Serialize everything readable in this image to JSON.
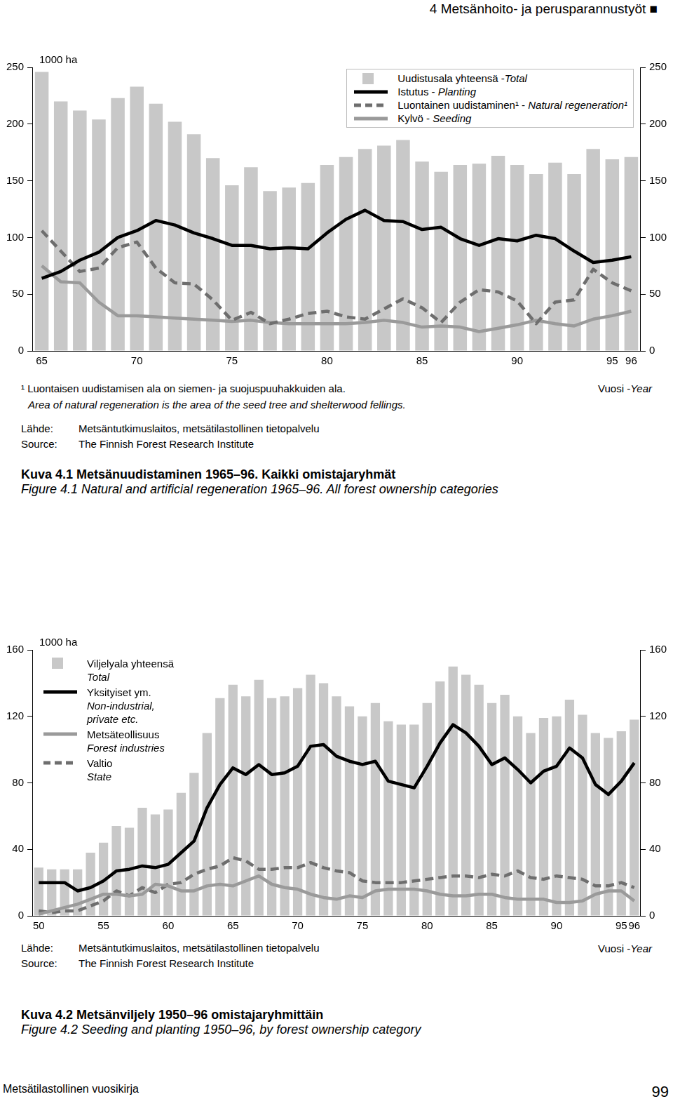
{
  "page": {
    "header": "4 Metsänhoito- ja perusparannustyöt ■",
    "footer": "Metsätilastollinen vuosikirja",
    "page_number": 99
  },
  "chart_data": [
    {
      "type": "bar",
      "title": "Kuva 4.1 Metsänuudistaminen 1965–96. Kaikki omistajaryhmät",
      "subtitle": "Figure 4.1 Natural and artificial regeneration 1965–96. All forest ownership categories",
      "y_label": "1000 ha",
      "x_label": "Vuosi -Year",
      "annotations": [
        "¹ Luontaisen uudistamisen ala on siemen- ja suojuspuuhakkuiden ala.",
        "Area of natural regeneration is the area of the seed tree and shelterwood fellings."
      ],
      "source": [
        {
          "label": "Lähde:",
          "text": "Metsäntutkimuslaitos, metsätilastollinen tietopalvelu"
        },
        {
          "label": "Source:",
          "text": "The Finnish Forest Research Institute"
        }
      ],
      "legend": "upper right",
      "categories": [
        "65",
        null,
        null,
        null,
        null,
        "70",
        null,
        null,
        null,
        null,
        "75",
        null,
        null,
        null,
        null,
        "80",
        null,
        null,
        null,
        null,
        "85",
        null,
        null,
        null,
        null,
        "90",
        null,
        null,
        null,
        null,
        "95",
        "96"
      ],
      "series": [
        {
          "name": "Uudistusala yhteensä -Total",
          "type": "bar",
          "color": "#c8c8c8",
          "values": [
            246,
            220,
            212,
            204,
            223,
            233,
            218,
            202,
            191,
            170,
            146,
            162,
            141,
            144,
            148,
            164,
            171,
            178,
            181,
            186,
            167,
            158,
            164,
            165,
            172,
            164,
            156,
            166,
            156,
            178,
            169,
            171
          ]
        },
        {
          "name": "Istutus - Planting",
          "type": "line",
          "color": "#000000",
          "line_style": "solid",
          "values": [
            64,
            70,
            80,
            87,
            100,
            106,
            115,
            111,
            104,
            99,
            93,
            93,
            90,
            91,
            90,
            104,
            116,
            124,
            115,
            114,
            107,
            109,
            99,
            93,
            99,
            97,
            102,
            99,
            88,
            78,
            80,
            83
          ]
        },
        {
          "name": "Luontainen uudistaminen¹ - Natural regeneration¹",
          "type": "line",
          "color": "#6e6e6e",
          "line_style": "dashed",
          "values": [
            106,
            88,
            70,
            73,
            91,
            96,
            73,
            60,
            59,
            45,
            27,
            34,
            24,
            28,
            33,
            35,
            30,
            28,
            37,
            46,
            38,
            25,
            43,
            54,
            52,
            44,
            24,
            43,
            45,
            72,
            60,
            53
          ]
        },
        {
          "name": "Kylvö - Seeding",
          "type": "line",
          "color": "#9a9a9a",
          "line_style": "solid",
          "values": [
            75,
            61,
            60,
            43,
            31,
            31,
            30,
            29,
            28,
            27,
            26,
            27,
            25,
            24,
            24,
            24,
            24,
            25,
            27,
            25,
            21,
            22,
            21,
            17,
            20,
            23,
            27,
            24,
            22,
            28,
            31,
            35
          ]
        }
      ],
      "ylim": [
        0,
        250
      ],
      "yticks": [
        0,
        50,
        100,
        150,
        200,
        250
      ],
      "y2lim": [
        0,
        250
      ],
      "y2ticks": [
        0,
        50,
        100,
        150,
        200,
        250
      ],
      "grid": false
    },
    {
      "type": "bar",
      "title": "Kuva 4.2 Metsänviljely 1950–96 omistajaryhmittäin",
      "subtitle": "Figure 4.2 Seeding and planting 1950–96, by forest ownership category",
      "y_label": "1000 ha",
      "x_label": "Vuosi -Year",
      "source": [
        {
          "label": "Lähde:",
          "text": "Metsäntutkimuslaitos, metsätilastollinen tietopalvelu"
        },
        {
          "label": "Source:",
          "text": "The Finnish Forest Research Institute"
        }
      ],
      "legend": "upper left",
      "categories": [
        "50",
        null,
        null,
        null,
        null,
        "55",
        null,
        null,
        null,
        null,
        "60",
        null,
        null,
        null,
        null,
        "65",
        null,
        null,
        null,
        null,
        "70",
        null,
        null,
        null,
        null,
        "75",
        null,
        null,
        null,
        null,
        "80",
        null,
        null,
        null,
        null,
        "85",
        null,
        null,
        null,
        null,
        "90",
        null,
        null,
        null,
        null,
        "95",
        "96"
      ],
      "series": [
        {
          "name": "Viljelyala yhteensä\nTotal",
          "type": "bar",
          "color": "#c8c8c8",
          "values": [
            29,
            28,
            28,
            28,
            38,
            44,
            54,
            53,
            65,
            61,
            64,
            74,
            86,
            110,
            131,
            139,
            132,
            142,
            131,
            132,
            137,
            145,
            140,
            132,
            126,
            120,
            128,
            117,
            115,
            115,
            128,
            141,
            150,
            145,
            139,
            128,
            133,
            120,
            110,
            119,
            120,
            130,
            121,
            110,
            107,
            111,
            118
          ]
        },
        {
          "name": "Yksityiset ym.\nNon-industrial,\nprivate etc.",
          "type": "line",
          "color": "#000000",
          "line_style": "solid",
          "values": [
            20,
            20,
            20,
            15,
            17,
            21,
            27,
            28,
            30,
            29,
            31,
            38,
            45,
            65,
            79,
            89,
            85,
            91,
            85,
            86,
            90,
            102,
            103,
            96,
            93,
            91,
            93,
            81,
            79,
            77,
            90,
            104,
            115,
            110,
            102,
            91,
            95,
            88,
            80,
            87,
            90,
            101,
            95,
            79,
            73,
            81,
            92
          ]
        },
        {
          "name": "Metsäteollisuus\nForest industries",
          "type": "line",
          "color": "#9a9a9a",
          "line_style": "solid",
          "values": [
            1,
            3,
            5,
            7,
            10,
            13,
            13,
            12,
            13,
            19,
            18,
            15,
            15,
            18,
            19,
            18,
            21,
            24,
            19,
            17,
            16,
            13,
            11,
            10,
            12,
            11,
            15,
            16,
            16,
            16,
            15,
            13,
            12,
            12,
            13,
            13,
            11,
            10,
            10,
            10,
            8,
            8,
            9,
            13,
            15,
            15,
            9
          ]
        },
        {
          "name": "Valtio\nState",
          "type": "line",
          "color": "#6e6e6e",
          "line_style": "dashed",
          "values": [
            3,
            2,
            3,
            3,
            6,
            9,
            15,
            12,
            17,
            14,
            19,
            20,
            25,
            28,
            30,
            35,
            33,
            28,
            28,
            29,
            29,
            32,
            29,
            27,
            26,
            21,
            20,
            20,
            20,
            21,
            22,
            23,
            24,
            24,
            23,
            25,
            24,
            27,
            23,
            22,
            24,
            23,
            22,
            18,
            18,
            20,
            17
          ]
        }
      ],
      "ylim": [
        0,
        160
      ],
      "yticks": [
        0,
        40,
        80,
        120,
        160
      ],
      "y2lim": [
        0,
        160
      ],
      "y2ticks": [
        0,
        40,
        80,
        120,
        160
      ],
      "grid": false
    }
  ]
}
